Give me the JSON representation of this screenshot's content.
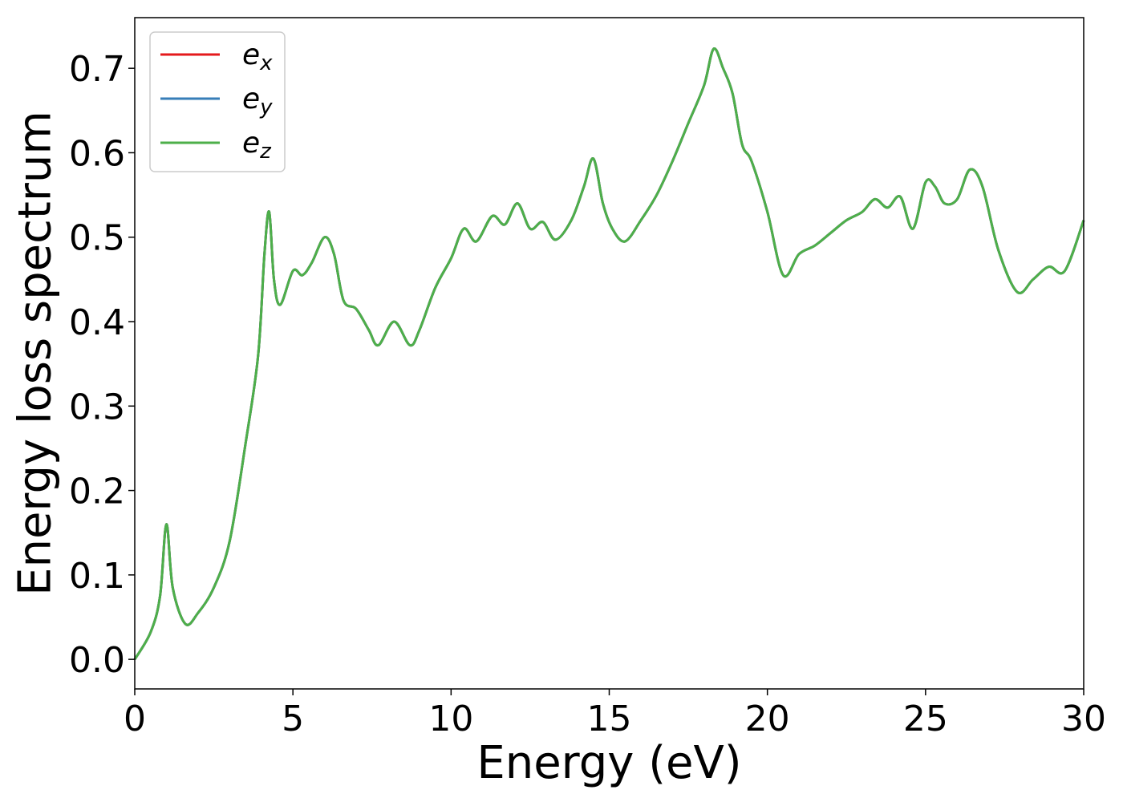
{
  "chart_data": {
    "type": "line",
    "title": "",
    "xlabel": "Energy (eV)",
    "ylabel": "Energy loss spectrum",
    "xlim": [
      0,
      30
    ],
    "ylim": [
      -0.035,
      0.76
    ],
    "xticks": [
      0,
      5,
      10,
      15,
      20,
      25,
      30
    ],
    "xtick_labels": [
      "0",
      "5",
      "10",
      "15",
      "20",
      "25",
      "30"
    ],
    "yticks": [
      0.0,
      0.1,
      0.2,
      0.3,
      0.4,
      0.5,
      0.6,
      0.7
    ],
    "ytick_labels": [
      "0.0",
      "0.1",
      "0.2",
      "0.3",
      "0.4",
      "0.5",
      "0.6",
      "0.7"
    ],
    "grid": false,
    "legend_position": "top-left",
    "colors": {
      "e_x": "#e41a1c",
      "e_y": "#377eb8",
      "e_z": "#4daf4a"
    },
    "x": [
      0,
      0.5,
      0.8,
      1.0,
      1.2,
      1.6,
      2.0,
      2.5,
      3.0,
      3.5,
      3.9,
      4.1,
      4.25,
      4.4,
      4.6,
      5.0,
      5.3,
      5.6,
      6.0,
      6.3,
      6.6,
      7.0,
      7.4,
      7.7,
      8.2,
      8.7,
      9.0,
      9.5,
      10.0,
      10.4,
      10.8,
      11.3,
      11.7,
      12.1,
      12.5,
      12.9,
      13.3,
      13.8,
      14.2,
      14.5,
      14.8,
      15.1,
      15.5,
      16.0,
      16.5,
      17.0,
      17.5,
      18.0,
      18.3,
      18.6,
      18.9,
      19.2,
      19.5,
      20.0,
      20.5,
      21.0,
      21.5,
      22.0,
      22.5,
      23.0,
      23.4,
      23.8,
      24.2,
      24.6,
      25.0,
      25.3,
      25.6,
      26.0,
      26.4,
      26.8,
      27.3,
      27.9,
      28.4,
      28.9,
      29.4,
      30.0
    ],
    "series": [
      {
        "name": "e_x",
        "label_base": "e",
        "label_sub": "x",
        "color": "#e41a1c",
        "values": [
          0.0,
          0.032,
          0.075,
          0.16,
          0.085,
          0.042,
          0.055,
          0.085,
          0.14,
          0.255,
          0.36,
          0.48,
          0.53,
          0.45,
          0.42,
          0.46,
          0.455,
          0.47,
          0.5,
          0.48,
          0.425,
          0.415,
          0.39,
          0.372,
          0.4,
          0.372,
          0.39,
          0.44,
          0.475,
          0.51,
          0.495,
          0.525,
          0.515,
          0.54,
          0.51,
          0.518,
          0.497,
          0.52,
          0.56,
          0.593,
          0.54,
          0.51,
          0.495,
          0.52,
          0.55,
          0.59,
          0.635,
          0.68,
          0.723,
          0.7,
          0.67,
          0.61,
          0.59,
          0.53,
          0.455,
          0.48,
          0.49,
          0.505,
          0.52,
          0.53,
          0.545,
          0.535,
          0.548,
          0.51,
          0.565,
          0.56,
          0.54,
          0.545,
          0.58,
          0.56,
          0.485,
          0.435,
          0.45,
          0.465,
          0.46,
          0.52
        ]
      },
      {
        "name": "e_y",
        "label_base": "e",
        "label_sub": "y",
        "color": "#377eb8",
        "values": [
          0.0,
          0.032,
          0.075,
          0.16,
          0.085,
          0.042,
          0.055,
          0.085,
          0.14,
          0.255,
          0.36,
          0.48,
          0.53,
          0.45,
          0.42,
          0.46,
          0.455,
          0.47,
          0.5,
          0.48,
          0.425,
          0.415,
          0.39,
          0.372,
          0.4,
          0.372,
          0.39,
          0.44,
          0.475,
          0.51,
          0.495,
          0.525,
          0.515,
          0.54,
          0.51,
          0.518,
          0.497,
          0.52,
          0.56,
          0.593,
          0.54,
          0.51,
          0.495,
          0.52,
          0.55,
          0.59,
          0.635,
          0.68,
          0.723,
          0.7,
          0.67,
          0.61,
          0.59,
          0.53,
          0.455,
          0.48,
          0.49,
          0.505,
          0.52,
          0.53,
          0.545,
          0.535,
          0.548,
          0.51,
          0.565,
          0.56,
          0.54,
          0.545,
          0.58,
          0.56,
          0.485,
          0.435,
          0.45,
          0.465,
          0.46,
          0.52
        ]
      },
      {
        "name": "e_z",
        "label_base": "e",
        "label_sub": "z",
        "color": "#4daf4a",
        "values": [
          0.0,
          0.032,
          0.075,
          0.16,
          0.085,
          0.042,
          0.055,
          0.085,
          0.14,
          0.255,
          0.36,
          0.48,
          0.53,
          0.45,
          0.42,
          0.46,
          0.455,
          0.47,
          0.5,
          0.48,
          0.425,
          0.415,
          0.39,
          0.372,
          0.4,
          0.372,
          0.39,
          0.44,
          0.475,
          0.51,
          0.495,
          0.525,
          0.515,
          0.54,
          0.51,
          0.518,
          0.497,
          0.52,
          0.56,
          0.593,
          0.54,
          0.51,
          0.495,
          0.52,
          0.55,
          0.59,
          0.635,
          0.68,
          0.723,
          0.7,
          0.67,
          0.61,
          0.59,
          0.53,
          0.455,
          0.48,
          0.49,
          0.505,
          0.52,
          0.53,
          0.545,
          0.535,
          0.548,
          0.51,
          0.565,
          0.56,
          0.54,
          0.545,
          0.58,
          0.56,
          0.485,
          0.435,
          0.45,
          0.465,
          0.46,
          0.52
        ]
      }
    ]
  }
}
